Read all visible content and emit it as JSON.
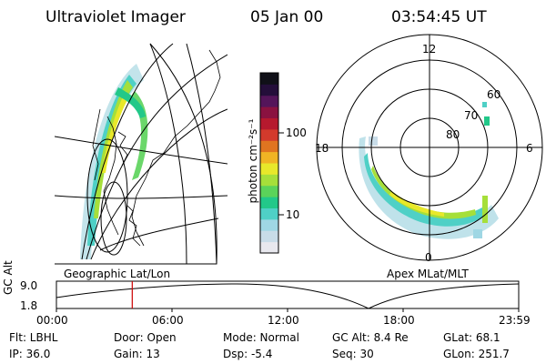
{
  "header": {
    "title": "Ultraviolet Imager",
    "date": "05 Jan 00",
    "time": "03:54:45 UT"
  },
  "colorbar": {
    "unit_label": "photon cm⁻²s⁻¹",
    "ticks": [
      "100",
      "10"
    ],
    "colors": [
      "#e8e8ee",
      "#c8dce8",
      "#9fd7e4",
      "#4fd0c6",
      "#22c889",
      "#5bd35a",
      "#a6df3a",
      "#e8e82a",
      "#f0b424",
      "#e07420",
      "#d33a2c",
      "#b6192e",
      "#8a1240",
      "#54155a",
      "#240e3a",
      "#101018"
    ]
  },
  "left_panel": {
    "caption": "Geographic Lat/Lon"
  },
  "right_panel": {
    "caption": "Apex MLat/MLT",
    "mlt_labels": {
      "top": "12",
      "left": "18",
      "right": "6",
      "bottom": "0"
    },
    "lat_labels": [
      "60",
      "70",
      "80"
    ]
  },
  "timeline": {
    "axis_label": "GC Alt",
    "y_ticks": [
      "9.0",
      "1.8"
    ],
    "x_ticks": [
      "00:00",
      "06:00",
      "12:00",
      "18:00",
      "23:59"
    ],
    "current_time_fraction": 0.164,
    "marker_color": "#cc0000"
  },
  "status": {
    "row1": {
      "flt": "Flt: LBHL",
      "door": "Door: Open",
      "mode": "Mode: Normal",
      "gcalt": "GC Alt: 8.4 Re",
      "glat": "GLat:  68.1"
    },
    "row2": {
      "ip": "IP: 36.0",
      "gain": "Gain: 13",
      "dsp": "Dsp:   -5.4",
      "seq": "Seq: 30",
      "glon": "GLon: 251.7"
    }
  }
}
